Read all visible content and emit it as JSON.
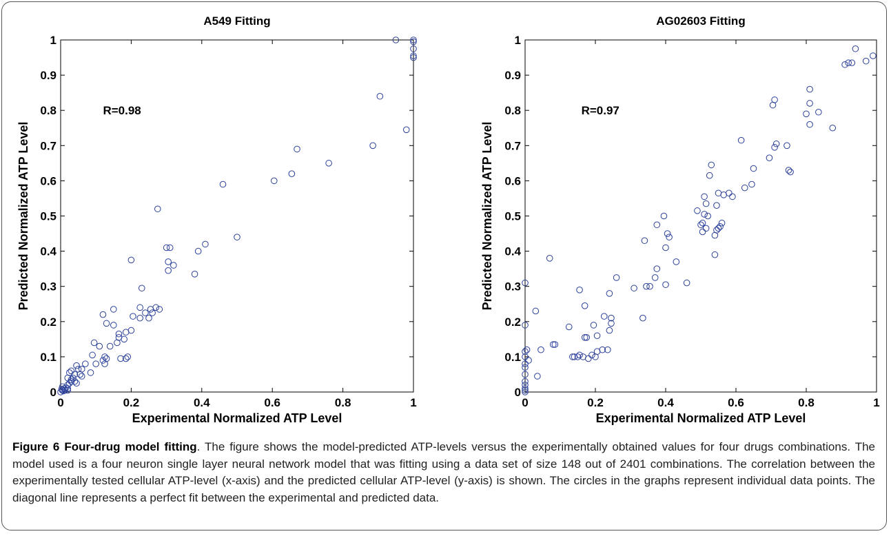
{
  "chart_data": [
    {
      "type": "scatter",
      "title": "A549 Fitting",
      "xlabel": "Experimental Normalized ATP Level",
      "ylabel": "Predicted Normalized ATP Level",
      "annotation": "R=0.98",
      "xlim": [
        0,
        1
      ],
      "ylim": [
        0,
        1
      ],
      "xticks": [
        0,
        0.2,
        0.4,
        0.6,
        0.8,
        1
      ],
      "yticks": [
        0,
        0.1,
        0.2,
        0.3,
        0.4,
        0.5,
        0.6,
        0.7,
        0.8,
        0.9,
        1
      ],
      "color": "#2a3f9a",
      "x": [
        0,
        0.005,
        0.01,
        0.003,
        0.008,
        0.015,
        0.02,
        0.012,
        0.005,
        0.02,
        0.025,
        0.03,
        0.02,
        0.035,
        0.04,
        0.03,
        0.025,
        0.04,
        0.045,
        0.05,
        0.055,
        0.045,
        0.02,
        0.03,
        0.06,
        0.07,
        0.06,
        0.085,
        0.09,
        0.1,
        0.095,
        0.11,
        0.12,
        0.125,
        0.125,
        0.13,
        0.12,
        0.13,
        0.14,
        0.15,
        0.15,
        0.16,
        0.165,
        0.165,
        0.17,
        0.18,
        0.185,
        0.19,
        0.185,
        0.2,
        0.2,
        0.205,
        0.225,
        0.225,
        0.23,
        0.24,
        0.25,
        0.255,
        0.26,
        0.27,
        0.275,
        0.28,
        0.3,
        0.305,
        0.305,
        0.31,
        0.32,
        0.38,
        0.39,
        0.41,
        0.46,
        0.5,
        0.605,
        0.655,
        0.67,
        0.76,
        0.885,
        0.905,
        0.95,
        0.98,
        1,
        1,
        1,
        1,
        1
      ],
      "values": [
        0,
        0.005,
        0.01,
        0.008,
        0.003,
        0.012,
        0.02,
        0.005,
        0.015,
        0.01,
        0.025,
        0.03,
        0.005,
        0.04,
        0.03,
        0.06,
        0.055,
        0.05,
        0.075,
        0.065,
        0.05,
        0.025,
        0.04,
        0.035,
        0.045,
        0.08,
        0.065,
        0.055,
        0.105,
        0.08,
        0.14,
        0.13,
        0.09,
        0.1,
        0.08,
        0.095,
        0.22,
        0.195,
        0.13,
        0.235,
        0.19,
        0.14,
        0.165,
        0.155,
        0.095,
        0.15,
        0.095,
        0.1,
        0.17,
        0.175,
        0.375,
        0.215,
        0.24,
        0.21,
        0.295,
        0.225,
        0.21,
        0.235,
        0.225,
        0.24,
        0.52,
        0.235,
        0.41,
        0.345,
        0.37,
        0.41,
        0.36,
        0.335,
        0.4,
        0.42,
        0.59,
        0.44,
        0.6,
        0.62,
        0.69,
        0.65,
        0.7,
        0.84,
        1,
        0.745,
        1,
        0.995,
        0.975,
        0.955,
        0.95
      ]
    },
    {
      "type": "scatter",
      "title": "AG02603 Fitting",
      "xlabel": "Experimental Normalized ATP Level",
      "ylabel": "Predicted Normalized ATP Level",
      "annotation": "R=0.97",
      "xlim": [
        0,
        1
      ],
      "ylim": [
        0,
        1
      ],
      "xticks": [
        0,
        0.2,
        0.4,
        0.6,
        0.8,
        1
      ],
      "yticks": [
        0,
        0.1,
        0.2,
        0.3,
        0.4,
        0.5,
        0.6,
        0.7,
        0.8,
        0.9,
        1
      ],
      "color": "#2a3f9a",
      "x": [
        0,
        0,
        0,
        0,
        0,
        0,
        0,
        0,
        0,
        0,
        0.005,
        0.01,
        0,
        0,
        0.03,
        0.035,
        0.045,
        0.07,
        0.08,
        0.085,
        0.125,
        0.135,
        0.14,
        0.15,
        0.155,
        0.155,
        0.165,
        0.17,
        0.17,
        0.175,
        0.18,
        0.19,
        0.195,
        0.2,
        0.205,
        0.205,
        0.22,
        0.225,
        0.235,
        0.24,
        0.24,
        0.245,
        0.245,
        0.26,
        0.31,
        0.335,
        0.34,
        0.345,
        0.355,
        0.37,
        0.375,
        0.375,
        0.395,
        0.4,
        0.4,
        0.405,
        0.41,
        0.43,
        0.46,
        0.49,
        0.5,
        0.505,
        0.505,
        0.51,
        0.51,
        0.515,
        0.515,
        0.52,
        0.525,
        0.53,
        0.54,
        0.54,
        0.545,
        0.545,
        0.55,
        0.55,
        0.555,
        0.56,
        0.565,
        0.58,
        0.59,
        0.615,
        0.625,
        0.645,
        0.65,
        0.695,
        0.705,
        0.71,
        0.71,
        0.715,
        0.745,
        0.75,
        0.755,
        0.8,
        0.81,
        0.81,
        0.81,
        0.835,
        0.875,
        0.91,
        0.92,
        0.93,
        0.94,
        0.97,
        0.99
      ],
      "values": [
        0,
        0.005,
        0.01,
        0.02,
        0.03,
        0.05,
        0.07,
        0.08,
        0.1,
        0.115,
        0.12,
        0.09,
        0.19,
        0.31,
        0.23,
        0.045,
        0.12,
        0.38,
        0.135,
        0.135,
        0.185,
        0.1,
        0.1,
        0.1,
        0.105,
        0.29,
        0.1,
        0.155,
        0.245,
        0.155,
        0.095,
        0.105,
        0.19,
        0.1,
        0.115,
        0.16,
        0.12,
        0.215,
        0.12,
        0.175,
        0.28,
        0.195,
        0.21,
        0.325,
        0.295,
        0.21,
        0.43,
        0.3,
        0.3,
        0.325,
        0.35,
        0.475,
        0.5,
        0.305,
        0.41,
        0.45,
        0.44,
        0.37,
        0.31,
        0.515,
        0.475,
        0.48,
        0.455,
        0.555,
        0.505,
        0.535,
        0.465,
        0.5,
        0.615,
        0.645,
        0.445,
        0.39,
        0.53,
        0.46,
        0.565,
        0.465,
        0.47,
        0.48,
        0.56,
        0.565,
        0.555,
        0.715,
        0.58,
        0.59,
        0.635,
        0.665,
        0.815,
        0.83,
        0.695,
        0.705,
        0.7,
        0.63,
        0.625,
        0.79,
        0.82,
        0.86,
        0.76,
        0.795,
        0.75,
        0.93,
        0.935,
        0.935,
        0.975,
        0.94,
        0.955
      ]
    }
  ],
  "caption": {
    "label": "Figure 6",
    "title": "Four-drug model fitting",
    "text": ". The figure shows the model-predicted ATP-levels versus the experimentally obtained values for four drugs combinations. The model used is a four neuron single layer neural network model that was fitting using a data set of size 148 out of 2401 combinations. The correlation between the experimentally tested cellular ATP-level (x-axis) and the predicted cellular ATP-level (y-axis) is shown. The circles in the graphs represent individual data points. The diagonal line represents a perfect fit between the experimental and predicted data."
  }
}
